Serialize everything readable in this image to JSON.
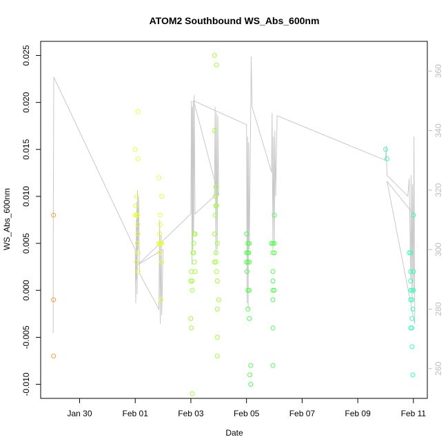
{
  "chart_data": {
    "type": "scatter",
    "title": "ATOM2 Southbound WS_Abs_600nm",
    "xlabel": "Date",
    "ylabel": "WS_Abs_600nm",
    "x_ticks": [
      {
        "day": 2,
        "label": "Jan 30"
      },
      {
        "day": 4,
        "label": "Feb 01"
      },
      {
        "day": 6,
        "label": "Feb 03"
      },
      {
        "day": 8,
        "label": "Feb 05"
      },
      {
        "day": 10,
        "label": "Feb 07"
      },
      {
        "day": 12,
        "label": "Feb 09"
      },
      {
        "day": 14,
        "label": "Feb 11"
      }
    ],
    "xlim": [
      0.6,
      14.5
    ],
    "ylim": [
      -0.0115,
      0.0265
    ],
    "y_ticks": [
      -0.01,
      -0.005,
      0.0,
      0.005,
      0.01,
      0.015,
      0.02,
      0.025
    ],
    "y_tick_labels": [
      "-0.010",
      "-0.005",
      "0.000",
      "0.005",
      "0.010",
      "0.015",
      "0.020",
      "0.025"
    ],
    "y2lim": [
      250,
      370
    ],
    "y2_ticks": [
      260,
      280,
      300,
      320,
      340,
      360
    ],
    "y2_tick_labels": [
      "260",
      "280",
      "300",
      "320",
      "340",
      "360"
    ],
    "series": [
      {
        "color": "#ff9933",
        "points": [
          [
            1.06,
            0.008
          ],
          [
            1.06,
            -0.001
          ],
          [
            1.06,
            -0.007
          ]
        ]
      },
      {
        "color": "#e8ff33",
        "points": [
          [
            4.0,
            0.015
          ],
          [
            4.05,
            0.01
          ],
          [
            4.1,
            0.019
          ],
          [
            4.1,
            0.014
          ],
          [
            4.02,
            0.009
          ],
          [
            4.05,
            0.008
          ],
          [
            4.06,
            0.008
          ],
          [
            4.07,
            0.008
          ],
          [
            4.08,
            0.008
          ],
          [
            4.0,
            0.008
          ],
          [
            4.1,
            0.007
          ],
          [
            4.1,
            0.006
          ],
          [
            4.08,
            0.005
          ],
          [
            4.1,
            0.004
          ],
          [
            4.1,
            0.002
          ],
          [
            4.05,
            0.003
          ],
          [
            4.85,
            0.012
          ],
          [
            4.95,
            0.01
          ],
          [
            4.9,
            0.008
          ],
          [
            4.9,
            0.007
          ],
          [
            4.88,
            0.006
          ],
          [
            4.9,
            0.005
          ],
          [
            4.95,
            0.005
          ],
          [
            4.92,
            0.005
          ],
          [
            4.85,
            0.005
          ],
          [
            4.88,
            0.004
          ],
          [
            4.95,
            0.003
          ],
          [
            4.92,
            -0.001
          ]
        ]
      },
      {
        "color": "#9bff33",
        "points": [
          [
            6.02,
            0.002
          ],
          [
            6.05,
            0.001
          ],
          [
            6.0,
            0.001
          ],
          [
            6.05,
            0.0
          ],
          [
            6.0,
            -0.003
          ],
          [
            6.02,
            -0.004
          ],
          [
            6.05,
            -0.011
          ],
          [
            6.08,
            0.004
          ],
          [
            6.1,
            0.004
          ],
          [
            6.12,
            0.006
          ],
          [
            6.15,
            0.006
          ],
          [
            6.1,
            0.005
          ],
          [
            6.12,
            0.003
          ],
          [
            6.15,
            0.002
          ],
          [
            6.85,
            0.025
          ],
          [
            6.92,
            0.024
          ],
          [
            6.85,
            0.017
          ],
          [
            6.9,
            0.011
          ],
          [
            6.88,
            0.01
          ],
          [
            6.92,
            0.009
          ],
          [
            6.9,
            0.009
          ],
          [
            6.88,
            0.008
          ],
          [
            6.85,
            0.006
          ],
          [
            6.95,
            0.005
          ],
          [
            6.9,
            0.004
          ],
          [
            6.85,
            0.003
          ],
          [
            6.92,
            0.002
          ],
          [
            6.9,
            0.003
          ],
          [
            6.95,
            0.001
          ],
          [
            7.0,
            -0.001
          ],
          [
            6.95,
            -0.002
          ],
          [
            6.95,
            -0.005
          ],
          [
            6.95,
            -0.007
          ]
        ]
      },
      {
        "color": "#4dff4d",
        "points": [
          [
            8.0,
            0.006
          ],
          [
            8.05,
            0.005
          ],
          [
            8.1,
            0.005
          ],
          [
            8.05,
            0.004
          ],
          [
            8.0,
            0.004
          ],
          [
            8.08,
            0.004
          ],
          [
            8.0,
            0.003
          ],
          [
            8.05,
            0.003
          ],
          [
            8.1,
            0.003
          ],
          [
            8.02,
            0.002
          ],
          [
            8.05,
            0.0
          ],
          [
            8.1,
            0.0
          ],
          [
            8.05,
            -0.002
          ],
          [
            8.1,
            -0.003
          ],
          [
            8.15,
            -0.008
          ],
          [
            8.12,
            -0.009
          ],
          [
            8.15,
            -0.01
          ],
          [
            8.9,
            0.005
          ],
          [
            8.95,
            0.005
          ],
          [
            9.0,
            0.005
          ],
          [
            9.0,
            0.008
          ],
          [
            8.95,
            0.004
          ],
          [
            9.0,
            0.004
          ],
          [
            8.95,
            0.002
          ],
          [
            8.95,
            0.001
          ],
          [
            8.95,
            0.0
          ],
          [
            9.0,
            0.0
          ],
          [
            8.95,
            -0.001
          ],
          [
            8.95,
            -0.004
          ],
          [
            8.95,
            -0.008
          ]
        ]
      },
      {
        "color": "#33ffbb",
        "points": [
          [
            13.0,
            0.015
          ],
          [
            13.05,
            0.014
          ],
          [
            13.85,
            0.004
          ],
          [
            13.9,
            0.004
          ],
          [
            13.9,
            0.002
          ],
          [
            13.9,
            0.001
          ],
          [
            13.95,
            0.0
          ],
          [
            13.9,
            0.0
          ],
          [
            13.95,
            -0.001
          ],
          [
            13.9,
            -0.001
          ],
          [
            13.95,
            -0.003
          ],
          [
            13.95,
            -0.004
          ],
          [
            13.9,
            -0.004
          ],
          [
            13.95,
            -0.006
          ],
          [
            14.0,
            0.008
          ],
          [
            14.0,
            0.002
          ],
          [
            14.0,
            0.0
          ],
          [
            13.98,
            -0.002
          ],
          [
            13.98,
            -0.009
          ]
        ]
      }
    ],
    "line_series": {
      "color": "#c8c8c8",
      "axis": "right",
      "points": [
        [
          1.05,
          272
        ],
        [
          1.05,
          300
        ],
        [
          1.07,
          358
        ],
        [
          4.0,
          300
        ],
        [
          4.02,
          282
        ],
        [
          4.04,
          310
        ],
        [
          4.05,
          290
        ],
        [
          4.06,
          316
        ],
        [
          4.07,
          285
        ],
        [
          4.08,
          320
        ],
        [
          4.1,
          300
        ],
        [
          4.12,
          318
        ],
        [
          4.15,
          292
        ],
        [
          4.85,
          280
        ],
        [
          4.88,
          310
        ],
        [
          4.9,
          275
        ],
        [
          4.93,
          305
        ],
        [
          4.95,
          278
        ],
        [
          5.0,
          300
        ],
        [
          4.1,
          295
        ],
        [
          6.0,
          312
        ],
        [
          6.02,
          350
        ],
        [
          6.04,
          295
        ],
        [
          6.05,
          348
        ],
        [
          6.07,
          300
        ],
        [
          6.08,
          350
        ],
        [
          6.1,
          305
        ],
        [
          6.12,
          352
        ],
        [
          6.15,
          312
        ],
        [
          6.85,
          318
        ],
        [
          6.87,
          348
        ],
        [
          6.9,
          298
        ],
        [
          6.92,
          346
        ],
        [
          6.95,
          300
        ],
        [
          6.97,
          345
        ],
        [
          7.0,
          318
        ],
        [
          6.1,
          350
        ],
        [
          8.0,
          342
        ],
        [
          8.02,
          282
        ],
        [
          8.04,
          338
        ],
        [
          8.06,
          280
        ],
        [
          8.08,
          336
        ],
        [
          8.1,
          300
        ],
        [
          8.12,
          318
        ],
        [
          8.15,
          345
        ],
        [
          8.17,
          365
        ],
        [
          8.2,
          348
        ],
        [
          8.9,
          326
        ],
        [
          8.92,
          346
        ],
        [
          8.95,
          300
        ],
        [
          8.97,
          338
        ],
        [
          9.0,
          302
        ],
        [
          9.02,
          340
        ],
        [
          9.05,
          318
        ],
        [
          9.1,
          345
        ],
        [
          13.0,
          330
        ],
        [
          13.02,
          335
        ],
        [
          13.05,
          325
        ],
        [
          13.8,
          318
        ],
        [
          13.85,
          324
        ],
        [
          13.9,
          290
        ],
        [
          13.92,
          325
        ],
        [
          13.95,
          282
        ],
        [
          13.97,
          322
        ],
        [
          14.0,
          285
        ],
        [
          14.02,
          338
        ],
        [
          14.05,
          275
        ],
        [
          13.05,
          323
        ],
        [
          14.0,
          312
        ]
      ]
    }
  }
}
